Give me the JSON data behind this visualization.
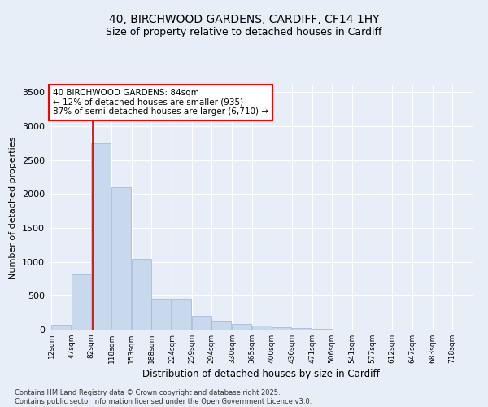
{
  "title_line1": "40, BIRCHWOOD GARDENS, CARDIFF, CF14 1HY",
  "title_line2": "Size of property relative to detached houses in Cardiff",
  "xlabel": "Distribution of detached houses by size in Cardiff",
  "ylabel": "Number of detached properties",
  "bar_color": "#c8d9ee",
  "bar_edge_color": "#9ab5d8",
  "annotation_box_text": "40 BIRCHWOOD GARDENS: 84sqm\n← 12% of detached houses are smaller (935)\n87% of semi-detached houses are larger (6,710) →",
  "vline_x": 84,
  "vline_color": "#cc0000",
  "categories": [
    "12sqm",
    "47sqm",
    "82sqm",
    "118sqm",
    "153sqm",
    "188sqm",
    "224sqm",
    "259sqm",
    "294sqm",
    "330sqm",
    "365sqm",
    "400sqm",
    "436sqm",
    "471sqm",
    "506sqm",
    "541sqm",
    "577sqm",
    "612sqm",
    "647sqm",
    "683sqm",
    "718sqm"
  ],
  "bin_edges": [
    12,
    47,
    82,
    118,
    153,
    188,
    224,
    259,
    294,
    330,
    365,
    400,
    436,
    471,
    506,
    541,
    577,
    612,
    647,
    683,
    718
  ],
  "values": [
    75,
    820,
    2750,
    2100,
    1040,
    460,
    460,
    200,
    130,
    85,
    60,
    35,
    20,
    10,
    5,
    5,
    3,
    2,
    1,
    1,
    1
  ],
  "ylim": [
    0,
    3600
  ],
  "yticks": [
    0,
    500,
    1000,
    1500,
    2000,
    2500,
    3000,
    3500
  ],
  "footer_line1": "Contains HM Land Registry data © Crown copyright and database right 2025.",
  "footer_line2": "Contains public sector information licensed under the Open Government Licence v3.0.",
  "bg_color": "#e8eef8",
  "plot_bg_color": "#e8eef8"
}
